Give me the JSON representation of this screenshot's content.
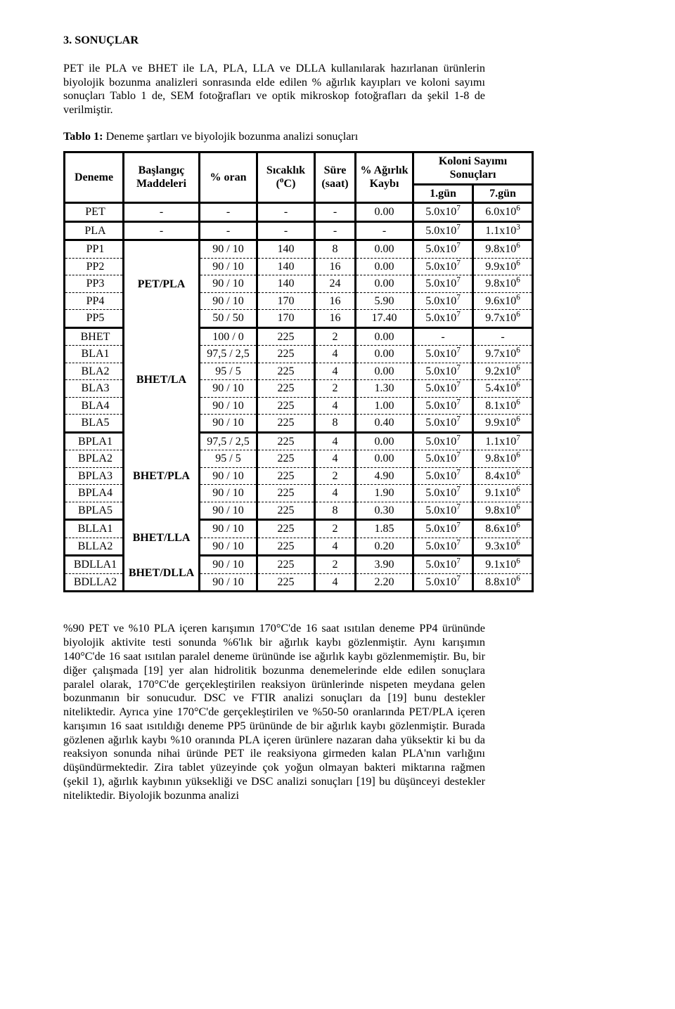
{
  "section_title": "3. SONUÇLAR",
  "intro_para": "PET ile PLA ve BHET ile LA, PLA, LLA ve DLLA kullanılarak hazırlanan ürünlerin biyolojik bozunma analizleri sonrasında elde edilen % ağırlık kayıpları ve koloni sayımı sonuçları Tablo 1 de, SEM fotoğrafları ve optik mikroskop fotoğrafları da şekil 1-8 de verilmiştir.",
  "table_caption_bold": "Tablo 1:",
  "table_caption_rest": " Deneme  şartları ve biyolojik bozunma analizi sonuçları",
  "headers": {
    "deneme": "Deneme",
    "baslang_l1": "Başlangıç",
    "baslang_l2": "Maddeleri",
    "oran": "% oran",
    "sicak_l1": "Sıcaklık",
    "sicak_l2_html": "(<span>°</span>C)",
    "sure_l1": "Süre",
    "sure_l2": "(saat)",
    "agirlik_l1": "% Ağırlık",
    "agirlik_l2": "Kaybı",
    "koloni_l1": "Koloni Sayımı",
    "koloni_l2": "Sonuçları",
    "gun1": "1.gün",
    "gun7": "7.gün"
  },
  "groups": [
    {
      "madde": "",
      "rows": [
        {
          "d": "PET",
          "o": "-",
          "s": "-",
          "su": "-",
          "a": "0.00",
          "k1": "5.0x10⁷",
          "k2": "6.0x10⁶"
        },
        {
          "d": "PLA",
          "o": "-",
          "s": "-",
          "su": "-",
          "a": "-",
          "k1": "5.0x10⁷",
          "k2": "1.1x10³"
        }
      ]
    },
    {
      "madde": "PET/PLA",
      "rows": [
        {
          "d": "PP1",
          "o": "90 / 10",
          "s": "140",
          "su": "8",
          "a": "0.00",
          "k1": "5.0x10⁷",
          "k2": "9.8x10⁶"
        },
        {
          "d": "PP2",
          "o": "90 / 10",
          "s": "140",
          "su": "16",
          "a": "0.00",
          "k1": "5.0x10⁷",
          "k2": "9.9x10⁶"
        },
        {
          "d": "PP3",
          "o": "90 / 10",
          "s": "140",
          "su": "24",
          "a": "0.00",
          "k1": "5.0x10⁷",
          "k2": "9.8x10⁶"
        },
        {
          "d": "PP4",
          "o": "90 / 10",
          "s": "170",
          "su": "16",
          "a": "5.90",
          "k1": "5.0x10⁷",
          "k2": "9.6x10⁶"
        },
        {
          "d": "PP5",
          "o": "50 / 50",
          "s": "170",
          "su": "16",
          "a": "17.40",
          "k1": "5.0x10⁷",
          "k2": "9.7x10⁶"
        }
      ]
    },
    {
      "madde": "BHET/LA",
      "rows": [
        {
          "d": "BHET",
          "o": "100 / 0",
          "s": "225",
          "su": "2",
          "a": "0.00",
          "k1": "-",
          "k2": "-"
        },
        {
          "d": "BLA1",
          "o": "97,5 / 2,5",
          "s": "225",
          "su": "4",
          "a": "0.00",
          "k1": "5.0x10⁷",
          "k2": "9.7x10⁶"
        },
        {
          "d": "BLA2",
          "o": "95 / 5",
          "s": "225",
          "su": "4",
          "a": "0.00",
          "k1": "5.0x10⁷",
          "k2": "9.2x10⁶"
        },
        {
          "d": "BLA3",
          "o": "90 / 10",
          "s": "225",
          "su": "2",
          "a": "1.30",
          "k1": "5.0x10⁷",
          "k2": "5.4x10⁶"
        },
        {
          "d": "BLA4",
          "o": "90 / 10",
          "s": "225",
          "su": "4",
          "a": "1.00",
          "k1": "5.0x10⁷",
          "k2": "8.1x10⁶"
        },
        {
          "d": "BLA5",
          "o": "90 / 10",
          "s": "225",
          "su": "8",
          "a": "0.40",
          "k1": "5.0x10⁷",
          "k2": "9.9x10⁶"
        }
      ]
    },
    {
      "madde": "BHET/PLA",
      "rows": [
        {
          "d": "BPLA1",
          "o": "97,5 / 2,5",
          "s": "225",
          "su": "4",
          "a": "0.00",
          "k1": "5.0x10⁷",
          "k2": "1.1x10⁷"
        },
        {
          "d": "BPLA2",
          "o": "95 / 5",
          "s": "225",
          "su": "4",
          "a": "0.00",
          "k1": "5.0x10⁷",
          "k2": "9.8x10⁶"
        },
        {
          "d": "BPLA3",
          "o": "90 / 10",
          "s": "225",
          "su": "2",
          "a": "4.90",
          "k1": "5.0x10⁷",
          "k2": "8.4x10⁶"
        },
        {
          "d": "BPLA4",
          "o": "90 / 10",
          "s": "225",
          "su": "4",
          "a": "1.90",
          "k1": "5.0x10⁷",
          "k2": "9.1x10⁶"
        },
        {
          "d": "BPLA5",
          "o": "90 / 10",
          "s": "225",
          "su": "8",
          "a": "0.30",
          "k1": "5.0x10⁷",
          "k2": "9.8x10⁶"
        }
      ]
    },
    {
      "madde": "BHET/LLA",
      "rows": [
        {
          "d": "BLLA1",
          "o": "90 / 10",
          "s": "225",
          "su": "2",
          "a": "1.85",
          "k1": "5.0x10⁷",
          "k2": "8.6x10⁶"
        },
        {
          "d": "BLLA2",
          "o": "90 / 10",
          "s": "225",
          "su": "4",
          "a": "0.20",
          "k1": "5.0x10⁷",
          "k2": "9.3x10⁶"
        }
      ]
    },
    {
      "madde": "BHET/DLLA",
      "rows": [
        {
          "d": "BDLLA1",
          "o": "90 / 10",
          "s": "225",
          "su": "2",
          "a": "3.90",
          "k1": "5.0x10⁷",
          "k2": "9.1x10⁶"
        },
        {
          "d": "BDLLA2",
          "o": "90 / 10",
          "s": "225",
          "su": "4",
          "a": "2.20",
          "k1": "5.0x10⁷",
          "k2": "8.8x10⁶"
        }
      ]
    }
  ],
  "after_para": "%90 PET ve %10 PLA içeren karışımın 170°C'de 16 saat ısıtılan deneme PP4 ürününde biyolojik aktivite testi sonunda %6'lık bir ağırlık kaybı gözlenmiştir. Aynı karışımın 140°C'de 16 saat ısıtılan paralel deneme ürününde ise ağırlık kaybı gözlenmemiştir.  Bu, bir diğer çalışmada [19] yer alan hidrolitik bozunma denemelerinde elde edilen sonuçlara paralel olarak, 170°C'de gerçekleştirilen reaksiyon ürünlerinde nispeten meydana gelen bozunmanın bir sonucudur.  DSC ve FTIR analizi sonuçları da [19] bunu destekler niteliktedir.  Ayrıca yine 170°C'de gerçekleştirilen ve %50-50 oranlarında PET/PLA içeren karışımın 16 saat ısıtıldığı deneme PP5 ürününde de bir ağırlık kaybı gözlenmiştir.  Burada gözlenen ağırlık kaybı %10 oranında PLA içeren ürünlere nazaran daha yüksektir ki bu da reaksiyon sonunda nihai üründe PET ile reaksiyona girmeden kalan PLA'nın varlığını düşündürmektedir. Zira tablet yüzeyinde çok yoğun olmayan bakteri miktarına rağmen (şekil 1), ağırlık kaybının yüksekliği ve DSC analizi sonuçları [19] bu düşünceyi destekler niteliktedir.   Biyolojik bozunma analizi"
}
